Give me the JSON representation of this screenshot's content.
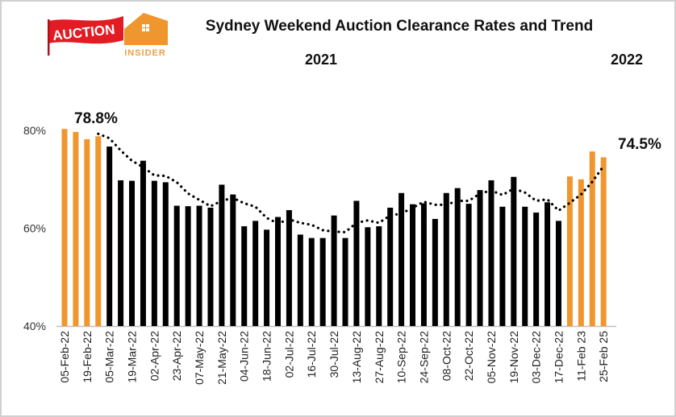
{
  "chart_data": {
    "type": "bar",
    "title": "Sydney Weekend Auction Clearance Rates and Trend",
    "year_labels": [
      "2021",
      "2022"
    ],
    "ylim": [
      40,
      80
    ],
    "yticks": [
      "40%",
      "60%",
      "80%"
    ],
    "grid": false,
    "tick_labels": [
      "05-Feb-22",
      "19-Feb-22",
      "05-Mar-22",
      "19-Mar-22",
      "02-Apr-22",
      "23-Apr-22",
      "07-May-22",
      "21-May-22",
      "04-Jun-22",
      "18-Jun-22",
      "02-Jul-22",
      "16-Jul-22",
      "30-Jul-22",
      "13-Aug-22",
      "27-Aug-22",
      "10-Sep-22",
      "24-Sep-22",
      "08-Oct-22",
      "22-Oct-22",
      "05-Nov-22",
      "19-Nov-22",
      "03-Dec-22",
      "17-Dec-22",
      "11-Feb 23",
      "25-Feb 25"
    ],
    "values": [
      80.3,
      79.7,
      78.2,
      78.8,
      76.7,
      69.8,
      69.7,
      73.8,
      69.7,
      69.4,
      64.6,
      64.5,
      64.6,
      64.2,
      68.9,
      66.9,
      60.4,
      61.5,
      59.7,
      62.3,
      63.7,
      58.7,
      58.0,
      58.0,
      62.6,
      58.0,
      65.6,
      60.2,
      60.4,
      64.2,
      67.2,
      64.9,
      65.1,
      61.9,
      67.2,
      68.2,
      65.0,
      67.8,
      69.8,
      64.4,
      70.5,
      64.4,
      63.2,
      65.3,
      61.5,
      70.6,
      70.0,
      75.7,
      74.5
    ],
    "bar_colors": {
      "highlight": "#F0962E",
      "default": "#000000"
    },
    "highlight_ranges": [
      [
        0,
        3
      ],
      [
        45,
        48
      ]
    ],
    "trend": [
      null,
      null,
      null,
      79.3,
      78.4,
      75.9,
      73.8,
      72.5,
      70.8,
      70.7,
      69.4,
      67.1,
      65.8,
      64.5,
      65.6,
      66.2,
      65.1,
      64.4,
      62.1,
      61.0,
      61.8,
      61.1,
      60.7,
      59.6,
      59.3,
      59.2,
      61.1,
      61.6,
      61.1,
      62.6,
      63.0,
      64.2,
      65.4,
      64.8,
      64.8,
      65.6,
      65.6,
      67.1,
      67.7,
      66.8,
      68.1,
      67.3,
      65.6,
      65.9,
      63.6,
      65.2,
      66.9,
      69.5,
      72.7
    ],
    "annotations": [
      "78.8%",
      "74.5%"
    ]
  },
  "logo": {
    "line1": "AUCTION",
    "line2": "INSIDER"
  }
}
